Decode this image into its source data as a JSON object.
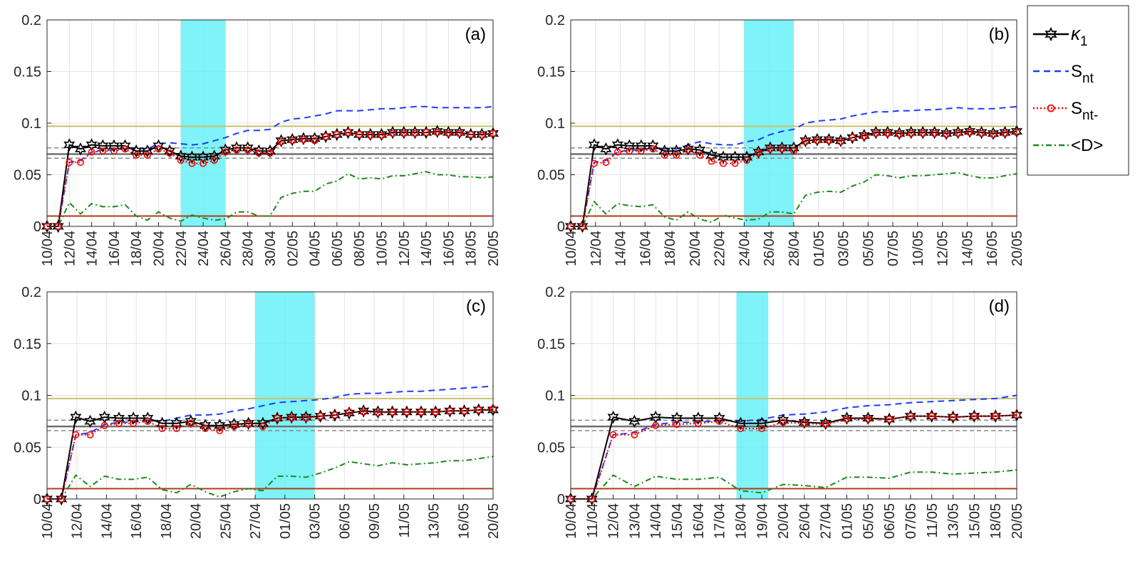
{
  "chart_data": [
    {
      "type": "line",
      "panel_label": "(a)",
      "ylim": [
        0,
        0.2
      ],
      "yticks": [
        "0",
        "0.05",
        "0.1",
        "0.15",
        "0.2"
      ],
      "xlabels": [
        "10/04",
        "12/04",
        "14/04",
        "16/04",
        "18/04",
        "20/04",
        "22/04",
        "24/04",
        "26/04",
        "28/04",
        "30/04",
        "02/05",
        "04/05",
        "06/05",
        "08/05",
        "10/05",
        "12/05",
        "14/05",
        "16/05",
        "18/05",
        "20/05"
      ],
      "highlight": [
        6,
        8
      ],
      "hlines": {
        "upper": 0.097,
        "mean": 0.07,
        "band_hi": 0.076,
        "band_lo": 0.066,
        "lower": 0.01
      },
      "series": [
        {
          "name": "κ1",
          "values": [
            0,
            0,
            0.079,
            0.075,
            0.079,
            0.078,
            0.078,
            0.078,
            0.073,
            0.073,
            0.078,
            0.073,
            0.068,
            0.067,
            0.067,
            0.068,
            0.074,
            0.076,
            0.076,
            0.073,
            0.073,
            0.083,
            0.084,
            0.085,
            0.085,
            0.087,
            0.089,
            0.091,
            0.089,
            0.089,
            0.089,
            0.091,
            0.091,
            0.091,
            0.091,
            0.092,
            0.091,
            0.091,
            0.089,
            0.089,
            0.09
          ]
        },
        {
          "name": "Snt",
          "values": [
            0,
            0,
            0.062,
            0.064,
            0.072,
            0.074,
            0.074,
            0.076,
            0.076,
            0.075,
            0.08,
            0.081,
            0.08,
            0.079,
            0.08,
            0.083,
            0.086,
            0.09,
            0.093,
            0.093,
            0.094,
            0.101,
            0.104,
            0.105,
            0.107,
            0.109,
            0.112,
            0.112,
            0.112,
            0.113,
            0.114,
            0.114,
            0.115,
            0.116,
            0.116,
            0.115,
            0.115,
            0.115,
            0.115,
            0.115,
            0.116
          ]
        },
        {
          "name": "Snt-",
          "values": [
            0,
            0,
            0.062,
            0.062,
            0.072,
            0.073,
            0.073,
            0.075,
            0.069,
            0.069,
            0.075,
            0.071,
            0.064,
            0.061,
            0.061,
            0.064,
            0.072,
            0.074,
            0.074,
            0.071,
            0.071,
            0.082,
            0.083,
            0.084,
            0.083,
            0.087,
            0.089,
            0.091,
            0.089,
            0.088,
            0.088,
            0.09,
            0.09,
            0.09,
            0.091,
            0.091,
            0.09,
            0.09,
            0.089,
            0.088,
            0.09
          ]
        },
        {
          "name": "<D>",
          "values": [
            0,
            0,
            0.023,
            0.012,
            0.022,
            0.019,
            0.019,
            0.021,
            0.01,
            0.006,
            0.014,
            0.008,
            0.005,
            0.011,
            0.008,
            0.006,
            0.007,
            0.014,
            0.014,
            0.01,
            0.01,
            0.028,
            0.032,
            0.034,
            0.034,
            0.041,
            0.044,
            0.051,
            0.046,
            0.047,
            0.046,
            0.049,
            0.049,
            0.051,
            0.053,
            0.05,
            0.05,
            0.048,
            0.048,
            0.047,
            0.048
          ]
        }
      ]
    },
    {
      "type": "line",
      "panel_label": "(b)",
      "ylim": [
        0,
        0.2
      ],
      "yticks": [
        "0",
        "0.05",
        "0.1",
        "0.15",
        "0.2"
      ],
      "xlabels": [
        "10/04",
        "12/04",
        "14/04",
        "16/04",
        "18/04",
        "20/04",
        "22/04",
        "24/04",
        "26/04",
        "28/04",
        "01/05",
        "03/05",
        "05/05",
        "07/05",
        "10/05",
        "12/05",
        "14/05",
        "16/05",
        "20/05"
      ],
      "highlight": [
        7,
        9
      ],
      "hlines": {
        "upper": 0.097,
        "mean": 0.07,
        "band_hi": 0.076,
        "band_lo": 0.066,
        "lower": 0.01
      },
      "series": [
        {
          "name": "κ1",
          "values": [
            0,
            0,
            0.079,
            0.075,
            0.079,
            0.078,
            0.078,
            0.078,
            0.073,
            0.073,
            0.075,
            0.074,
            0.069,
            0.067,
            0.067,
            0.067,
            0.072,
            0.076,
            0.076,
            0.076,
            0.083,
            0.084,
            0.084,
            0.083,
            0.086,
            0.088,
            0.091,
            0.091,
            0.09,
            0.091,
            0.091,
            0.091,
            0.09,
            0.091,
            0.092,
            0.091,
            0.09,
            0.091,
            0.092
          ]
        },
        {
          "name": "Snt",
          "values": [
            0,
            0,
            0.062,
            0.064,
            0.072,
            0.074,
            0.074,
            0.076,
            0.075,
            0.075,
            0.079,
            0.082,
            0.08,
            0.079,
            0.079,
            0.082,
            0.084,
            0.089,
            0.092,
            0.094,
            0.1,
            0.102,
            0.103,
            0.104,
            0.107,
            0.109,
            0.111,
            0.111,
            0.112,
            0.112,
            0.113,
            0.113,
            0.114,
            0.115,
            0.114,
            0.114,
            0.114,
            0.115,
            0.116
          ]
        },
        {
          "name": "Snt-",
          "values": [
            0,
            0,
            0.061,
            0.062,
            0.072,
            0.073,
            0.073,
            0.075,
            0.069,
            0.069,
            0.074,
            0.069,
            0.063,
            0.061,
            0.061,
            0.064,
            0.071,
            0.075,
            0.075,
            0.073,
            0.082,
            0.083,
            0.083,
            0.082,
            0.086,
            0.087,
            0.09,
            0.09,
            0.089,
            0.09,
            0.09,
            0.09,
            0.089,
            0.09,
            0.091,
            0.09,
            0.089,
            0.09,
            0.091
          ]
        },
        {
          "name": "<D>",
          "values": [
            0,
            0,
            0.024,
            0.012,
            0.022,
            0.02,
            0.019,
            0.021,
            0.009,
            0.006,
            0.014,
            0.007,
            0.004,
            0.011,
            0.008,
            0.006,
            0.007,
            0.014,
            0.014,
            0.012,
            0.03,
            0.033,
            0.034,
            0.033,
            0.039,
            0.043,
            0.05,
            0.049,
            0.047,
            0.049,
            0.049,
            0.05,
            0.051,
            0.052,
            0.049,
            0.047,
            0.047,
            0.049,
            0.051
          ]
        }
      ]
    },
    {
      "type": "line",
      "panel_label": "(c)",
      "ylim": [
        0,
        0.2
      ],
      "yticks": [
        "0",
        "0.05",
        "0.1",
        "0.15",
        "0.2"
      ],
      "xlabels": [
        "10/04",
        "12/04",
        "14/04",
        "16/04",
        "18/04",
        "20/04",
        "25/04",
        "27/04",
        "01/05",
        "03/05",
        "06/05",
        "09/05",
        "11/05",
        "13/05",
        "16/05",
        "20/05"
      ],
      "highlight": [
        7,
        9
      ],
      "hlines": {
        "upper": 0.097,
        "mean": 0.07,
        "band_hi": 0.076,
        "band_lo": 0.066,
        "lower": 0.01
      },
      "series": [
        {
          "name": "κ1",
          "values": [
            0,
            0,
            0.079,
            0.075,
            0.079,
            0.078,
            0.078,
            0.078,
            0.073,
            0.073,
            0.075,
            0.071,
            0.071,
            0.072,
            0.073,
            0.073,
            0.078,
            0.079,
            0.079,
            0.08,
            0.081,
            0.083,
            0.085,
            0.084,
            0.084,
            0.084,
            0.084,
            0.084,
            0.085,
            0.085,
            0.086,
            0.086
          ]
        },
        {
          "name": "Snt",
          "values": [
            0,
            0,
            0.062,
            0.064,
            0.072,
            0.074,
            0.074,
            0.076,
            0.075,
            0.078,
            0.081,
            0.081,
            0.082,
            0.085,
            0.087,
            0.09,
            0.093,
            0.094,
            0.095,
            0.096,
            0.098,
            0.101,
            0.102,
            0.102,
            0.103,
            0.104,
            0.104,
            0.105,
            0.106,
            0.107,
            0.108,
            0.109
          ]
        },
        {
          "name": "Snt-",
          "values": [
            0,
            0,
            0.062,
            0.062,
            0.071,
            0.073,
            0.073,
            0.075,
            0.068,
            0.068,
            0.073,
            0.068,
            0.066,
            0.07,
            0.072,
            0.07,
            0.078,
            0.078,
            0.078,
            0.08,
            0.081,
            0.084,
            0.084,
            0.083,
            0.084,
            0.084,
            0.084,
            0.084,
            0.085,
            0.085,
            0.086,
            0.087
          ]
        },
        {
          "name": "<D>",
          "values": [
            0,
            0,
            0.023,
            0.012,
            0.022,
            0.019,
            0.019,
            0.021,
            0.009,
            0.006,
            0.014,
            0.007,
            0.002,
            0.007,
            0.01,
            0.008,
            0.022,
            0.022,
            0.021,
            0.025,
            0.03,
            0.036,
            0.034,
            0.032,
            0.035,
            0.033,
            0.034,
            0.035,
            0.037,
            0.037,
            0.039,
            0.041
          ]
        }
      ]
    },
    {
      "type": "line",
      "panel_label": "(d)",
      "ylim": [
        0,
        0.2
      ],
      "yticks": [
        "0",
        "0.05",
        "0.1",
        "0.15",
        "0.2"
      ],
      "xlabels": [
        "10/04",
        "11/04",
        "12/04",
        "13/04",
        "14/04",
        "15/04",
        "16/04",
        "17/04",
        "18/04",
        "19/04",
        "20/04",
        "26/04",
        "27/04",
        "01/05",
        "05/05",
        "06/05",
        "07/05",
        "11/05",
        "13/05",
        "15/05",
        "18/05",
        "20/05"
      ],
      "highlight": [
        7.8,
        9.3
      ],
      "hlines": {
        "upper": 0.097,
        "mean": 0.07,
        "band_hi": 0.076,
        "band_lo": 0.066,
        "lower": 0.01
      },
      "series": [
        {
          "name": "κ1",
          "values": [
            0,
            0,
            0.079,
            0.075,
            0.079,
            0.078,
            0.078,
            0.078,
            0.073,
            0.073,
            0.076,
            0.074,
            0.073,
            0.078,
            0.078,
            0.077,
            0.08,
            0.08,
            0.079,
            0.08,
            0.08,
            0.081
          ]
        },
        {
          "name": "Snt",
          "values": [
            0,
            0,
            0.062,
            0.064,
            0.072,
            0.074,
            0.074,
            0.076,
            0.075,
            0.077,
            0.081,
            0.082,
            0.084,
            0.088,
            0.09,
            0.091,
            0.093,
            0.094,
            0.095,
            0.096,
            0.097,
            0.1
          ]
        },
        {
          "name": "Snt-",
          "values": [
            0,
            0,
            0.062,
            0.062,
            0.071,
            0.072,
            0.073,
            0.075,
            0.068,
            0.068,
            0.074,
            0.073,
            0.072,
            0.077,
            0.077,
            0.077,
            0.08,
            0.08,
            0.079,
            0.08,
            0.08,
            0.081
          ]
        },
        {
          "name": "<D>",
          "values": [
            0,
            0,
            0.023,
            0.012,
            0.022,
            0.019,
            0.019,
            0.021,
            0.008,
            0.006,
            0.014,
            0.013,
            0.011,
            0.021,
            0.021,
            0.02,
            0.026,
            0.026,
            0.024,
            0.025,
            0.026,
            0.028
          ]
        }
      ]
    }
  ],
  "legend": [
    {
      "name": "κ1",
      "main": "κ",
      "sub": "1"
    },
    {
      "name": "Snt",
      "main": "S",
      "sub": "nt"
    },
    {
      "name": "Snt-",
      "main": "S",
      "sub": "nt-"
    },
    {
      "name": "<D>",
      "main": "<D>",
      "sub": ""
    }
  ],
  "colors": {
    "kappa1": "#000000",
    "snt": "#1f3cff",
    "snt_minus": "#ff0000",
    "d": "#1b8a1b",
    "upper_line": "#c8c070",
    "lower_line": "#b23a1a",
    "mean_line": "#707070",
    "band_line": "#888888",
    "highlight": "#5ff0f5"
  }
}
